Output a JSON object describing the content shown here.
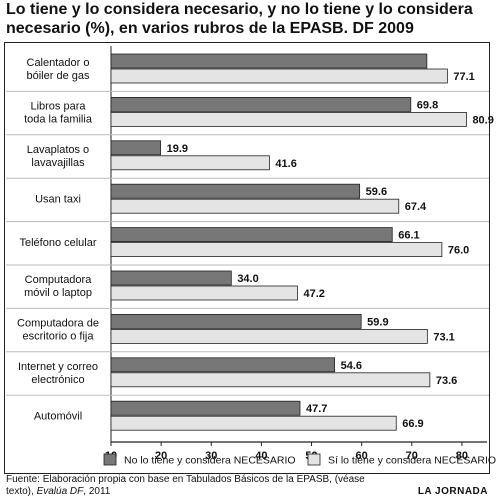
{
  "title": "Lo tiene y lo considera necesario, y no lo tiene y lo considera necesario (%), en varios rubros de la EPASB. DF 2009",
  "source": {
    "prefix": "Fuente: Elaboración propia con base en Tabulados Básicos de la EPASB, (véase texto),",
    "italic": "Evalúa DF",
    "suffix": ", 2011"
  },
  "brand": "LA JORNADA",
  "colors": {
    "series_dark": "#777777",
    "series_light": "#e4e4e4",
    "bar_stroke": "#222222",
    "separator": "#bbbbbb",
    "frame": "#222222"
  },
  "chart_data": {
    "type": "bar",
    "orientation": "horizontal",
    "categories": [
      [
        "Calentador o",
        "bóiler de gas"
      ],
      [
        "Libros para",
        "toda la familia"
      ],
      [
        "Lavaplatos o",
        "lavavajillas"
      ],
      [
        "Usan taxi"
      ],
      [
        "Teléfono celular"
      ],
      [
        "Computadora",
        "móvil o laptop"
      ],
      [
        "Computadora de",
        "escritorio o fija"
      ],
      [
        "Internet y correo",
        "electrónico"
      ],
      [
        "Automóvil"
      ]
    ],
    "series": [
      {
        "name": "No lo tiene y considera NECESARIO",
        "color": "#777777",
        "values": [
          73.0,
          69.8,
          19.9,
          59.6,
          66.1,
          34.0,
          59.9,
          54.6,
          47.7
        ],
        "labels": [
          "",
          "69.8",
          "19.9",
          "59.6",
          "66.1",
          "34.0",
          "59.9",
          "54.6",
          "47.7"
        ]
      },
      {
        "name": "Sí lo tiene y considera NECESARIO",
        "color": "#e4e4e4",
        "values": [
          77.1,
          80.9,
          41.6,
          67.4,
          76.0,
          47.2,
          73.1,
          73.6,
          66.9
        ],
        "labels": [
          "77.1",
          "80.9",
          "41.6",
          "67.4",
          "76.0",
          "47.2",
          "73.1",
          "73.6",
          "66.9"
        ]
      }
    ],
    "xlim": [
      10,
      85
    ],
    "xticks": [
      "10",
      "20",
      "30",
      "40",
      "50",
      "60",
      "70",
      "80"
    ],
    "grid": false,
    "legend_position": "bottom"
  }
}
